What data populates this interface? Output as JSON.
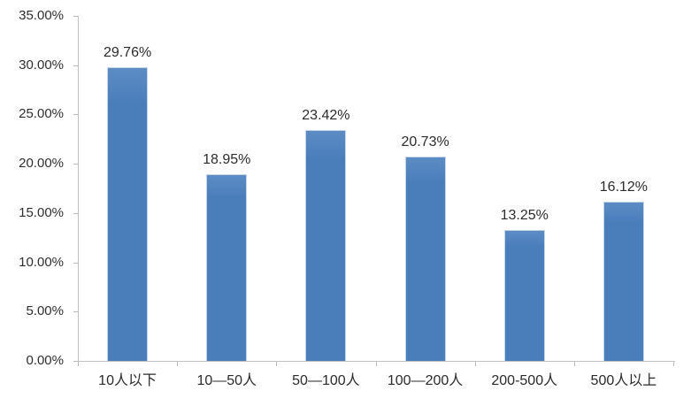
{
  "chart_data": {
    "type": "bar",
    "title": "",
    "xlabel": "",
    "ylabel": "",
    "categories": [
      "10人以下",
      "10—50人",
      "50—100人",
      "100—200人",
      "200-500人",
      "500人以上"
    ],
    "values": [
      29.76,
      18.95,
      23.42,
      20.73,
      13.25,
      16.12
    ],
    "value_labels": [
      "29.76%",
      "18.95%",
      "23.42%",
      "20.73%",
      "13.25%",
      "16.12%"
    ],
    "y_ticks": [
      {
        "value": 0,
        "label": "0.00%"
      },
      {
        "value": 5,
        "label": "5.00%"
      },
      {
        "value": 10,
        "label": "10.00%"
      },
      {
        "value": 15,
        "label": "15.00%"
      },
      {
        "value": 20,
        "label": "20.00%"
      },
      {
        "value": 25,
        "label": "25.00%"
      },
      {
        "value": 30,
        "label": "30.00%"
      },
      {
        "value": 35,
        "label": "35.00%"
      }
    ],
    "ylim": [
      0,
      35
    ],
    "grid": false,
    "legend": false,
    "colors": {
      "bar": "#4a7ebb",
      "bar_highlight": "#5d8cc4",
      "axis": "#c2c2c2",
      "text": "#2b2b2b"
    }
  }
}
